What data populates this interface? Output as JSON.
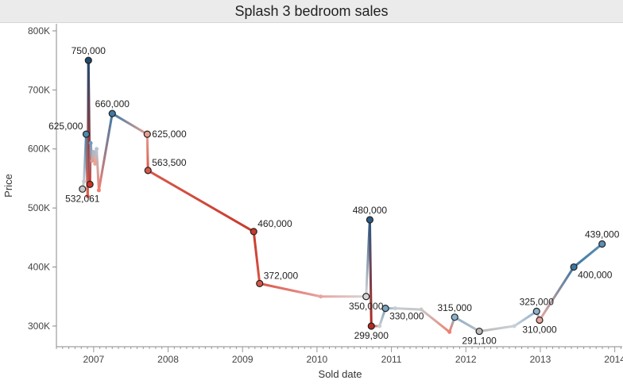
{
  "chart_data": {
    "type": "line",
    "title": "Splash 3 bedroom sales",
    "xlabel": "Sold date",
    "ylabel": "Price",
    "xlim": [
      2006.5,
      2014.1
    ],
    "ylim": [
      265000,
      812000
    ],
    "x_ticks": [
      2007,
      2008,
      2009,
      2010,
      2011,
      2012,
      2013,
      2014
    ],
    "x_tick_labels": [
      "2007",
      "2008",
      "2009",
      "2010",
      "2011",
      "2012",
      "2013",
      "2014"
    ],
    "y_ticks": [
      300000,
      400000,
      500000,
      600000,
      700000,
      800000
    ],
    "y_tick_labels": [
      "300K",
      "400K",
      "500K",
      "600K",
      "700K",
      "800K"
    ],
    "points": [
      {
        "x": 2006.85,
        "y": 532061,
        "color": "#c9c9c9",
        "marked": true
      },
      {
        "x": 2006.87,
        "y": 545000,
        "color": "#c0c6cc",
        "marked": false
      },
      {
        "x": 2006.9,
        "y": 625000,
        "color": "#4f87b0",
        "marked": true
      },
      {
        "x": 2006.92,
        "y": 520000,
        "color": "#e06050",
        "marked": false
      },
      {
        "x": 2006.93,
        "y": 750000,
        "color": "#21496e",
        "marked": true
      },
      {
        "x": 2006.95,
        "y": 540000,
        "color": "#cc3322",
        "marked": true
      },
      {
        "x": 2006.96,
        "y": 610000,
        "color": "#6a9cc0",
        "marked": false
      },
      {
        "x": 2006.98,
        "y": 580000,
        "color": "#e39a8c",
        "marked": false
      },
      {
        "x": 2007.0,
        "y": 595000,
        "color": "#a8bccc",
        "marked": false
      },
      {
        "x": 2007.02,
        "y": 575000,
        "color": "#f0a090",
        "marked": false
      },
      {
        "x": 2007.04,
        "y": 600000,
        "color": "#b6c4d0",
        "marked": false
      },
      {
        "x": 2007.07,
        "y": 530000,
        "color": "#f08070",
        "marked": false
      },
      {
        "x": 2007.25,
        "y": 660000,
        "color": "#3f7aa5",
        "marked": true
      },
      {
        "x": 2007.72,
        "y": 625000,
        "color": "#e5a090",
        "marked": true
      },
      {
        "x": 2007.73,
        "y": 563500,
        "color": "#d9584a",
        "marked": true
      },
      {
        "x": 2009.15,
        "y": 460000,
        "color": "#c73a2c",
        "marked": true
      },
      {
        "x": 2009.23,
        "y": 372000,
        "color": "#d95545",
        "marked": true
      },
      {
        "x": 2010.05,
        "y": 350000,
        "color": "#e9a3a0",
        "marked": false
      },
      {
        "x": 2010.66,
        "y": 350000,
        "color": "#d6d6d6",
        "marked": true
      },
      {
        "x": 2010.71,
        "y": 480000,
        "color": "#2c5a85",
        "marked": true
      },
      {
        "x": 2010.73,
        "y": 299900,
        "color": "#b52a1f",
        "marked": true
      },
      {
        "x": 2010.84,
        "y": 300000,
        "color": "#cccccc",
        "marked": false
      },
      {
        "x": 2010.92,
        "y": 330000,
        "color": "#7aa4c4",
        "marked": true
      },
      {
        "x": 2011.05,
        "y": 330000,
        "color": "#c5ccd3",
        "marked": false
      },
      {
        "x": 2011.4,
        "y": 328000,
        "color": "#c7c7c7",
        "marked": false
      },
      {
        "x": 2011.78,
        "y": 290000,
        "color": "#f08070",
        "marked": false
      },
      {
        "x": 2011.85,
        "y": 315000,
        "color": "#8eb1cc",
        "marked": true
      },
      {
        "x": 2012.18,
        "y": 291100,
        "color": "#bbbbbb",
        "marked": true
      },
      {
        "x": 2012.65,
        "y": 300000,
        "color": "#c8d0d8",
        "marked": false
      },
      {
        "x": 2012.95,
        "y": 325000,
        "color": "#8eb1cc",
        "marked": true
      },
      {
        "x": 2012.99,
        "y": 310000,
        "color": "#eaa79e",
        "marked": true
      },
      {
        "x": 2013.45,
        "y": 400000,
        "color": "#3d77a3",
        "marked": true
      },
      {
        "x": 2013.83,
        "y": 439000,
        "color": "#5d8fb6",
        "marked": true
      }
    ],
    "data_labels": [
      {
        "text": "750,000",
        "x": 2006.93,
        "y": 750000,
        "pos": "above"
      },
      {
        "text": "660,000",
        "x": 2007.25,
        "y": 660000,
        "pos": "above"
      },
      {
        "text": "625,000",
        "x": 2006.9,
        "y": 625000,
        "pos": "above-left"
      },
      {
        "text": "625,000",
        "x": 2007.72,
        "y": 625000,
        "pos": "right"
      },
      {
        "text": "563,500",
        "x": 2007.73,
        "y": 563500,
        "pos": "above-right"
      },
      {
        "text": "532,061",
        "x": 2006.85,
        "y": 532061,
        "pos": "below"
      },
      {
        "text": "460,000",
        "x": 2009.15,
        "y": 460000,
        "pos": "above-right"
      },
      {
        "text": "372,000",
        "x": 2009.23,
        "y": 372000,
        "pos": "above-right"
      },
      {
        "text": "480,000",
        "x": 2010.71,
        "y": 480000,
        "pos": "above"
      },
      {
        "text": "350,000",
        "x": 2010.66,
        "y": 350000,
        "pos": "below"
      },
      {
        "text": "299,900",
        "x": 2010.73,
        "y": 299900,
        "pos": "below"
      },
      {
        "text": "330,000",
        "x": 2010.92,
        "y": 330000,
        "pos": "below-right"
      },
      {
        "text": "315,000",
        "x": 2011.85,
        "y": 315000,
        "pos": "above"
      },
      {
        "text": "291,100",
        "x": 2012.18,
        "y": 291100,
        "pos": "below"
      },
      {
        "text": "325,000",
        "x": 2012.95,
        "y": 325000,
        "pos": "above"
      },
      {
        "text": "310,000",
        "x": 2012.99,
        "y": 310000,
        "pos": "below"
      },
      {
        "text": "400,000",
        "x": 2013.45,
        "y": 400000,
        "pos": "below-right"
      },
      {
        "text": "439,000",
        "x": 2013.83,
        "y": 439000,
        "pos": "above"
      }
    ],
    "grid": false,
    "legend": "none"
  }
}
